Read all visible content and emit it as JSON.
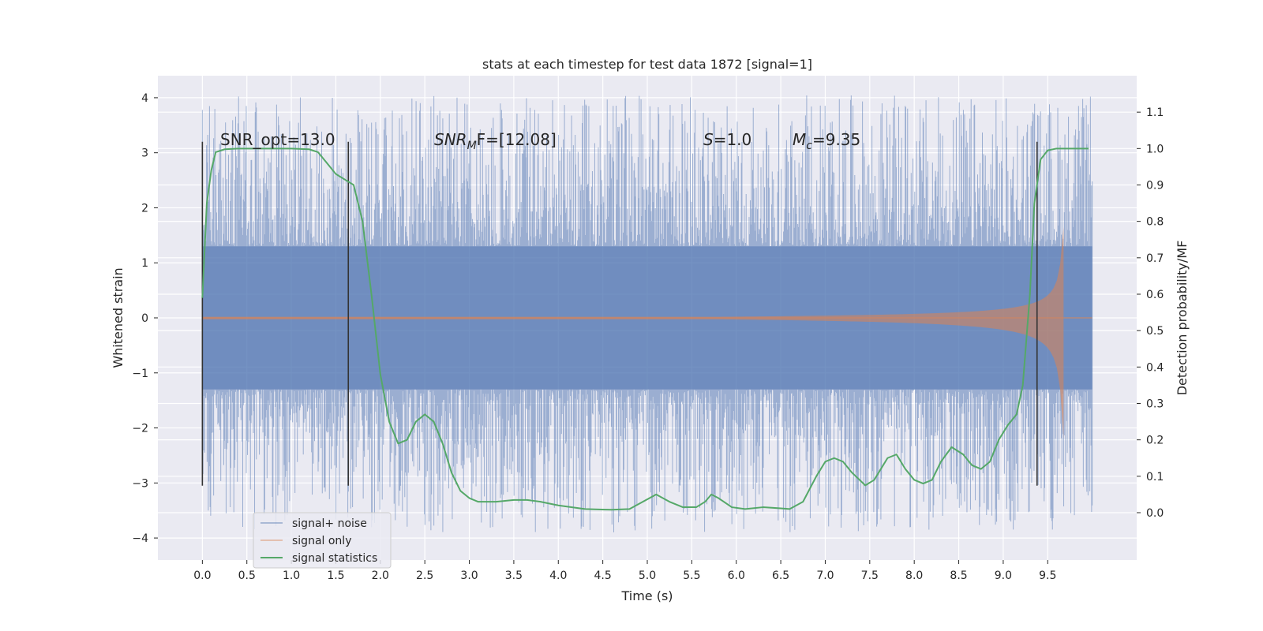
{
  "chart_data": {
    "type": "line",
    "title": "stats at each timestep for test data 1872 [signal=1]",
    "xlabel": "Time (s)",
    "ylabel": "Whitened strain",
    "y2label": "Detection probability/MF",
    "xlim": [
      -0.5,
      10.5
    ],
    "ylim": [
      -4.4,
      4.4
    ],
    "y2lim": [
      -0.13,
      1.2
    ],
    "xticks": [
      "0.0",
      "0.5",
      "1.0",
      "1.5",
      "2.0",
      "2.5",
      "3.0",
      "3.5",
      "4.0",
      "4.5",
      "5.0",
      "5.5",
      "6.0",
      "6.5",
      "7.0",
      "7.5",
      "8.0",
      "8.5",
      "9.0",
      "9.5"
    ],
    "yticks": [
      "4",
      "3",
      "2",
      "1",
      "0",
      "−1",
      "−2",
      "−3",
      "−4"
    ],
    "y2ticks": [
      "1.1",
      "1.0",
      "0.9",
      "0.8",
      "0.7",
      "0.6",
      "0.5",
      "0.4",
      "0.3",
      "0.2",
      "0.1",
      "0.0"
    ],
    "grid": true,
    "legend_position": "bottom-left",
    "annotations": {
      "snr_opt": "SNR_opt=13.0",
      "snr_mf_base": "SNR",
      "snr_mf_sub": "M",
      "snr_mf_rest": "F=[12.08]",
      "s_sym": "S",
      "s_val": "=1.0",
      "mc_sym": "M",
      "mc_sub": "c",
      "mc_val": "=9.35"
    },
    "vertical_markers_x": [
      0.0,
      1.64,
      9.38
    ],
    "series": [
      {
        "name": "signal+ noise",
        "color": "#4c72b0",
        "description": "whitened strain noise band, x 0.0-10.0",
        "envelope": {
          "x": [
            0.0,
            10.0
          ],
          "dense_min": -1.3,
          "dense_max": 1.3,
          "spike_min": -3.9,
          "spike_max": 4.05
        }
      },
      {
        "name": "signal only",
        "color": "#dd8452",
        "description": "chirp waveform, amplitude grows toward merger at x≈9.68",
        "chirp": {
          "start": 0.0,
          "merger": 9.68,
          "peak_pos": 1.65,
          "peak_neg": -2.2
        }
      },
      {
        "name": "signal statistics",
        "color": "#55a868",
        "axis": "right",
        "points": [
          [
            0.0,
            0.59
          ],
          [
            0.05,
            0.85
          ],
          [
            0.1,
            0.94
          ],
          [
            0.15,
            0.99
          ],
          [
            0.25,
            0.998
          ],
          [
            0.4,
            1.0
          ],
          [
            0.7,
            1.0
          ],
          [
            1.0,
            1.0
          ],
          [
            1.2,
            0.998
          ],
          [
            1.3,
            0.99
          ],
          [
            1.4,
            0.96
          ],
          [
            1.5,
            0.93
          ],
          [
            1.6,
            0.915
          ],
          [
            1.7,
            0.9
          ],
          [
            1.8,
            0.8
          ],
          [
            1.9,
            0.6
          ],
          [
            2.0,
            0.38
          ],
          [
            2.1,
            0.25
          ],
          [
            2.2,
            0.19
          ],
          [
            2.3,
            0.2
          ],
          [
            2.4,
            0.25
          ],
          [
            2.5,
            0.27
          ],
          [
            2.6,
            0.25
          ],
          [
            2.7,
            0.19
          ],
          [
            2.8,
            0.11
          ],
          [
            2.9,
            0.06
          ],
          [
            3.0,
            0.04
          ],
          [
            3.1,
            0.03
          ],
          [
            3.3,
            0.03
          ],
          [
            3.5,
            0.035
          ],
          [
            3.65,
            0.035
          ],
          [
            3.8,
            0.03
          ],
          [
            4.0,
            0.02
          ],
          [
            4.3,
            0.01
          ],
          [
            4.6,
            0.008
          ],
          [
            4.8,
            0.01
          ],
          [
            4.95,
            0.03
          ],
          [
            5.1,
            0.05
          ],
          [
            5.25,
            0.03
          ],
          [
            5.4,
            0.015
          ],
          [
            5.55,
            0.015
          ],
          [
            5.65,
            0.03
          ],
          [
            5.72,
            0.05
          ],
          [
            5.8,
            0.04
          ],
          [
            5.95,
            0.015
          ],
          [
            6.1,
            0.01
          ],
          [
            6.3,
            0.015
          ],
          [
            6.5,
            0.012
          ],
          [
            6.6,
            0.01
          ],
          [
            6.75,
            0.03
          ],
          [
            6.9,
            0.1
          ],
          [
            7.0,
            0.14
          ],
          [
            7.1,
            0.15
          ],
          [
            7.2,
            0.14
          ],
          [
            7.3,
            0.11
          ],
          [
            7.45,
            0.075
          ],
          [
            7.55,
            0.09
          ],
          [
            7.7,
            0.15
          ],
          [
            7.8,
            0.16
          ],
          [
            7.9,
            0.12
          ],
          [
            8.0,
            0.09
          ],
          [
            8.1,
            0.08
          ],
          [
            8.2,
            0.09
          ],
          [
            8.3,
            0.14
          ],
          [
            8.42,
            0.18
          ],
          [
            8.55,
            0.16
          ],
          [
            8.65,
            0.13
          ],
          [
            8.75,
            0.12
          ],
          [
            8.85,
            0.14
          ],
          [
            8.95,
            0.2
          ],
          [
            9.05,
            0.24
          ],
          [
            9.15,
            0.27
          ],
          [
            9.22,
            0.35
          ],
          [
            9.3,
            0.6
          ],
          [
            9.35,
            0.85
          ],
          [
            9.42,
            0.97
          ],
          [
            9.5,
            0.995
          ],
          [
            9.6,
            1.0
          ],
          [
            9.8,
            1.0
          ],
          [
            9.96,
            1.0
          ]
        ]
      }
    ]
  }
}
